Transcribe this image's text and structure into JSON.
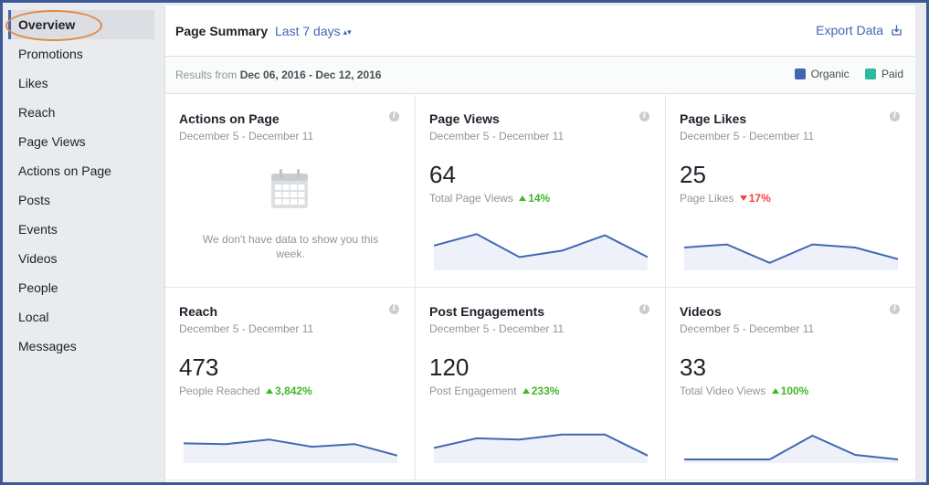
{
  "sidebar": {
    "items": [
      {
        "label": "Overview",
        "active": true
      },
      {
        "label": "Promotions"
      },
      {
        "label": "Likes"
      },
      {
        "label": "Reach"
      },
      {
        "label": "Page Views"
      },
      {
        "label": "Actions on Page"
      },
      {
        "label": "Posts"
      },
      {
        "label": "Events"
      },
      {
        "label": "Videos"
      },
      {
        "label": "People"
      },
      {
        "label": "Local"
      },
      {
        "label": "Messages"
      }
    ]
  },
  "header": {
    "title": "Page Summary",
    "range": "Last 7 days",
    "export_label": "Export Data"
  },
  "subheader": {
    "results_prefix": "Results from",
    "results_range": "Dec 06, 2016 - Dec 12, 2016",
    "legend": [
      {
        "label": "Organic",
        "color": "#4267b2"
      },
      {
        "label": "Paid",
        "color": "#2bbca0"
      }
    ]
  },
  "cards": [
    {
      "title": "Actions on Page",
      "date": "December 5 - December 11",
      "empty_message": "We don't have data to show you this week."
    },
    {
      "title": "Page Views",
      "date": "December 5 - December 11",
      "value": "64",
      "metric": "Total Page Views",
      "delta": "14%",
      "trend": "up",
      "spark": [
        0.55,
        0.85,
        0.25,
        0.42,
        0.82,
        0.25
      ]
    },
    {
      "title": "Page Likes",
      "date": "December 5 - December 11",
      "value": "25",
      "metric": "Page Likes",
      "delta": "17%",
      "trend": "down",
      "spark": [
        0.5,
        0.58,
        0.1,
        0.58,
        0.5,
        0.2
      ]
    },
    {
      "title": "Reach",
      "date": "December 5 - December 11",
      "value": "473",
      "metric": "People Reached",
      "delta": "3,842%",
      "trend": "up",
      "spark": [
        0.42,
        0.4,
        0.52,
        0.33,
        0.4,
        0.1
      ]
    },
    {
      "title": "Post Engagements",
      "date": "December 5 - December 11",
      "value": "120",
      "metric": "Post Engagement",
      "delta": "233%",
      "trend": "up",
      "spark": [
        0.3,
        0.55,
        0.52,
        0.65,
        0.65,
        0.1
      ]
    },
    {
      "title": "Videos",
      "date": "December 5 - December 11",
      "value": "33",
      "metric": "Total Video Views",
      "delta": "100%",
      "trend": "up",
      "spark": [
        0.0,
        0.0,
        0.0,
        0.62,
        0.12,
        0.0
      ]
    }
  ],
  "colors": {
    "accent": "#4267b2",
    "up": "#42b72a",
    "down": "#fa3e3e",
    "highlight": "#e08a44"
  }
}
